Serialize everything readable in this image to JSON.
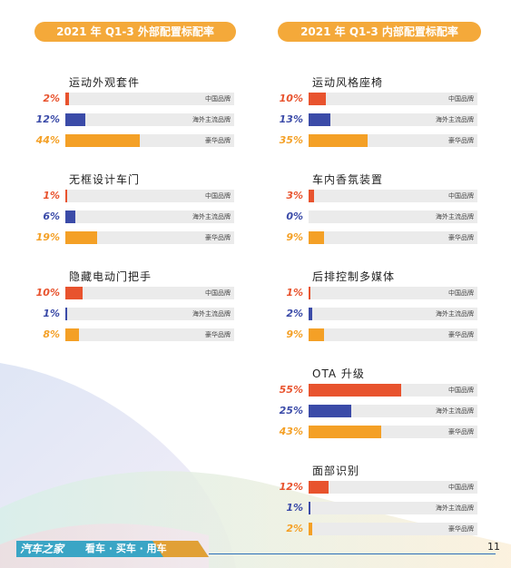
{
  "headers": {
    "left": "2021 年 Q1-3 外部配置标配率",
    "right": "2021 年 Q1-3 内部配置标配率"
  },
  "labels": {
    "cn": "中国品牌",
    "os": "海外主流品牌",
    "lx": "豪华品牌"
  },
  "colors": {
    "cn": "#e8532e",
    "os": "#3b4ba8",
    "lx": "#f4a026",
    "header": "#f4a93a"
  },
  "groups": [
    {
      "title": "运动外观套件",
      "cn": "2%",
      "os": "12%",
      "lx": "44%",
      "cn_v": 2,
      "os_v": 12,
      "lx_v": 44
    },
    {
      "title": "无框设计车门",
      "cn": "1%",
      "os": "6%",
      "lx": "19%",
      "cn_v": 1,
      "os_v": 6,
      "lx_v": 19
    },
    {
      "title": "隐藏电动门把手",
      "cn": "10%",
      "os": "1%",
      "lx": "8%",
      "cn_v": 10,
      "os_v": 1,
      "lx_v": 8
    },
    {
      "title": "运动风格座椅",
      "cn": "10%",
      "os": "13%",
      "lx": "35%",
      "cn_v": 10,
      "os_v": 13,
      "lx_v": 35
    },
    {
      "title": "车内香氛装置",
      "cn": "3%",
      "os": "0%",
      "lx": "9%",
      "cn_v": 3,
      "os_v": 0,
      "lx_v": 9
    },
    {
      "title": "后排控制多媒体",
      "cn": "1%",
      "os": "2%",
      "lx": "9%",
      "cn_v": 1,
      "os_v": 2,
      "lx_v": 9
    },
    {
      "title": "OTA 升级",
      "cn": "55%",
      "os": "25%",
      "lx": "43%",
      "cn_v": 55,
      "os_v": 25,
      "lx_v": 43
    },
    {
      "title": "面部识别",
      "cn": "12%",
      "os": "1%",
      "lx": "2%",
      "cn_v": 12,
      "os_v": 1,
      "lx_v": 2
    }
  ],
  "footer": {
    "logo": "汽车之家",
    "slogan": "看车 · 买车 · 用车",
    "page": "11"
  }
}
